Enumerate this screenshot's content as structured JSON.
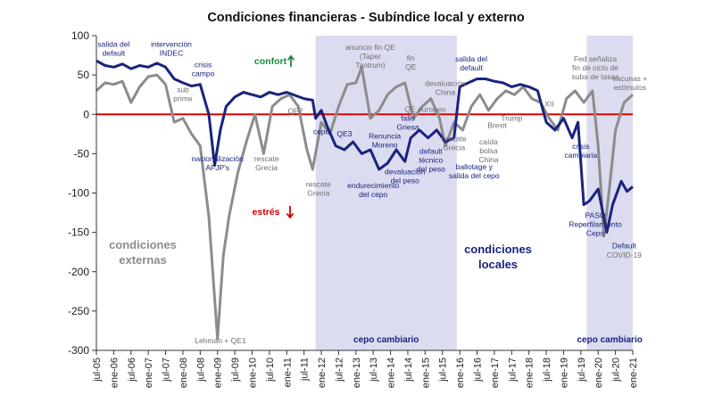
{
  "chart_data": {
    "type": "line",
    "title": "Condiciones financieras - Subíndice local y externo",
    "ylim": [
      -300,
      100
    ],
    "y_ticks": [
      100,
      50,
      0,
      -50,
      -100,
      -150,
      -200,
      -250,
      -300
    ],
    "x_start": "2005-07",
    "x_end": "2021-01",
    "x_ticks": [
      "jul-05",
      "ene-06",
      "jul-06",
      "ene-07",
      "jul-07",
      "ene-08",
      "jul-08",
      "ene-09",
      "jul-09",
      "ene-10",
      "jul-10",
      "ene-11",
      "jul-11",
      "ene-12",
      "jul-12",
      "ene-13",
      "jul-13",
      "ene-14",
      "jul-14",
      "ene-15",
      "jul-15",
      "ene-16",
      "jul-16",
      "ene-17",
      "jul-17",
      "ene-18",
      "jul-18",
      "ene-19",
      "jul-19",
      "ene-20",
      "jul-20",
      "ene-21"
    ],
    "reference_line": 0,
    "colors": {
      "local": "#1a237e",
      "externo": "#8c8c8c",
      "zero": "#e00000",
      "shade": "#dcdcf0"
    },
    "shaded_periods": [
      {
        "label": "cepo cambiario",
        "start": "2011-11",
        "end": "2015-12"
      },
      {
        "label": "cepo cambiario",
        "start": "2019-09",
        "end": "2021-01"
      }
    ],
    "series": [
      {
        "name": "condiciones locales",
        "color": "#1a237e",
        "points": [
          [
            "2005-07",
            68
          ],
          [
            "2005-10",
            62
          ],
          [
            "2006-01",
            60
          ],
          [
            "2006-04",
            64
          ],
          [
            "2006-07",
            58
          ],
          [
            "2006-10",
            62
          ],
          [
            "2007-01",
            60
          ],
          [
            "2007-04",
            65
          ],
          [
            "2007-07",
            60
          ],
          [
            "2007-10",
            45
          ],
          [
            "2008-01",
            40
          ],
          [
            "2008-04",
            36
          ],
          [
            "2008-07",
            38
          ],
          [
            "2008-10",
            0
          ],
          [
            "2008-12",
            -65
          ],
          [
            "2009-02",
            -20
          ],
          [
            "2009-04",
            10
          ],
          [
            "2009-07",
            22
          ],
          [
            "2009-10",
            28
          ],
          [
            "2010-01",
            25
          ],
          [
            "2010-04",
            22
          ],
          [
            "2010-07",
            28
          ],
          [
            "2010-10",
            25
          ],
          [
            "2011-01",
            28
          ],
          [
            "2011-04",
            24
          ],
          [
            "2011-07",
            20
          ],
          [
            "2011-10",
            18
          ],
          [
            "2011-11",
            -5
          ],
          [
            "2012-01",
            5
          ],
          [
            "2012-03",
            -15
          ],
          [
            "2012-06",
            -40
          ],
          [
            "2012-09",
            -45
          ],
          [
            "2012-12",
            -35
          ],
          [
            "2013-03",
            -50
          ],
          [
            "2013-06",
            -45
          ],
          [
            "2013-09",
            -70
          ],
          [
            "2013-12",
            -62
          ],
          [
            "2014-03",
            -45
          ],
          [
            "2014-06",
            -60
          ],
          [
            "2014-08",
            -30
          ],
          [
            "2014-11",
            -20
          ],
          [
            "2015-02",
            -30
          ],
          [
            "2015-05",
            -20
          ],
          [
            "2015-08",
            -35
          ],
          [
            "2015-11",
            -30
          ],
          [
            "2016-01",
            35
          ],
          [
            "2016-04",
            40
          ],
          [
            "2016-07",
            45
          ],
          [
            "2016-10",
            45
          ],
          [
            "2017-01",
            42
          ],
          [
            "2017-04",
            40
          ],
          [
            "2017-07",
            35
          ],
          [
            "2017-10",
            38
          ],
          [
            "2018-01",
            35
          ],
          [
            "2018-04",
            30
          ],
          [
            "2018-07",
            -10
          ],
          [
            "2018-10",
            -20
          ],
          [
            "2019-01",
            -5
          ],
          [
            "2019-04",
            -30
          ],
          [
            "2019-06",
            -10
          ],
          [
            "2019-08",
            -115
          ],
          [
            "2019-10",
            -110
          ],
          [
            "2020-01",
            -95
          ],
          [
            "2020-04",
            -150
          ],
          [
            "2020-06",
            -115
          ],
          [
            "2020-09",
            -85
          ],
          [
            "2020-11",
            -98
          ],
          [
            "2021-01",
            -92
          ]
        ]
      },
      {
        "name": "condiciones externas",
        "color": "#8c8c8c",
        "points": [
          [
            "2005-07",
            30
          ],
          [
            "2005-10",
            40
          ],
          [
            "2006-01",
            38
          ],
          [
            "2006-04",
            42
          ],
          [
            "2006-07",
            15
          ],
          [
            "2006-10",
            35
          ],
          [
            "2007-01",
            48
          ],
          [
            "2007-04",
            50
          ],
          [
            "2007-07",
            38
          ],
          [
            "2007-10",
            -10
          ],
          [
            "2008-01",
            -5
          ],
          [
            "2008-04",
            -25
          ],
          [
            "2008-07",
            -40
          ],
          [
            "2008-10",
            -130
          ],
          [
            "2009-01",
            -285
          ],
          [
            "2009-03",
            -180
          ],
          [
            "2009-05",
            -130
          ],
          [
            "2009-08",
            -75
          ],
          [
            "2009-11",
            -35
          ],
          [
            "2010-02",
            0
          ],
          [
            "2010-05",
            -50
          ],
          [
            "2010-08",
            10
          ],
          [
            "2010-11",
            20
          ],
          [
            "2011-02",
            25
          ],
          [
            "2011-05",
            10
          ],
          [
            "2011-08",
            -45
          ],
          [
            "2011-10",
            -70
          ],
          [
            "2012-01",
            -10
          ],
          [
            "2012-04",
            -25
          ],
          [
            "2012-07",
            10
          ],
          [
            "2012-10",
            38
          ],
          [
            "2013-01",
            40
          ],
          [
            "2013-03",
            60
          ],
          [
            "2013-06",
            -5
          ],
          [
            "2013-09",
            5
          ],
          [
            "2013-12",
            25
          ],
          [
            "2014-03",
            35
          ],
          [
            "2014-06",
            40
          ],
          [
            "2014-09",
            -5
          ],
          [
            "2014-12",
            10
          ],
          [
            "2015-03",
            20
          ],
          [
            "2015-06",
            -5
          ],
          [
            "2015-08",
            -40
          ],
          [
            "2015-11",
            -10
          ],
          [
            "2016-02",
            -20
          ],
          [
            "2016-05",
            10
          ],
          [
            "2016-08",
            25
          ],
          [
            "2016-11",
            5
          ],
          [
            "2017-02",
            20
          ],
          [
            "2017-05",
            30
          ],
          [
            "2017-08",
            25
          ],
          [
            "2017-11",
            35
          ],
          [
            "2018-02",
            20
          ],
          [
            "2018-05",
            15
          ],
          [
            "2018-08",
            -5
          ],
          [
            "2018-11",
            -20
          ],
          [
            "2019-02",
            20
          ],
          [
            "2019-05",
            30
          ],
          [
            "2019-08",
            15
          ],
          [
            "2019-11",
            30
          ],
          [
            "2020-01",
            -40
          ],
          [
            "2020-03",
            -155
          ],
          [
            "2020-05",
            -90
          ],
          [
            "2020-07",
            -20
          ],
          [
            "2020-10",
            15
          ],
          [
            "2021-01",
            25
          ]
        ]
      }
    ],
    "labels": {
      "series_externas": [
        "condiciones",
        "externas"
      ],
      "series_locales": [
        "condiciones",
        "locales"
      ],
      "confort": "confort",
      "estres": "estrés"
    },
    "annotations": [
      {
        "text": [
          "salida del",
          "default"
        ],
        "color": "local",
        "date": "2006-01",
        "value": 86
      },
      {
        "text": [
          "intervención",
          "INDEC"
        ],
        "color": "local",
        "date": "2007-09",
        "value": 86
      },
      {
        "text": [
          "crisis",
          "campo"
        ],
        "color": "local",
        "date": "2008-08",
        "value": 60
      },
      {
        "text": [
          "sub",
          "prime"
        ],
        "color": "externo",
        "date": "2008-01",
        "value": 28
      },
      {
        "text": [
          "nacionalización",
          "AFJP's"
        ],
        "color": "local",
        "date": "2009-01",
        "value": -60
      },
      {
        "text": [
          "rescate",
          "Grecia"
        ],
        "color": "externo",
        "date": "2010-06",
        "value": -60
      },
      {
        "text": [
          "QE2"
        ],
        "color": "externo",
        "date": "2011-04",
        "value": 1
      },
      {
        "text": [
          "cepo"
        ],
        "color": "local",
        "date": "2012-01",
        "value": -25
      },
      {
        "text": [
          "rescate",
          "Grecia"
        ],
        "color": "externo",
        "date": "2011-12",
        "value": -92
      },
      {
        "text": [
          "anuncio fin QE",
          "(Taper",
          "Tantrum)"
        ],
        "color": "externo",
        "date": "2013-06",
        "value": 82
      },
      {
        "text": [
          "QE3"
        ],
        "color": "local",
        "date": "2012-09",
        "value": -28
      },
      {
        "text": [
          "Renuncia",
          "Moreno"
        ],
        "color": "local",
        "date": "2013-11",
        "value": -31
      },
      {
        "text": [
          "endurecimiento",
          "del cepo"
        ],
        "color": "local",
        "date": "2013-07",
        "value": -94
      },
      {
        "text": [
          "fin",
          "QE"
        ],
        "color": "externo",
        "date": "2014-08",
        "value": 68
      },
      {
        "text": [
          "QE europeo"
        ],
        "color": "externo",
        "date": "2015-01",
        "value": 3
      },
      {
        "text": [
          "fallo",
          "Griesa"
        ],
        "color": "local",
        "date": "2014-07",
        "value": -8
      },
      {
        "text": [
          "devaluación",
          "del peso"
        ],
        "color": "local",
        "date": "2014-06",
        "value": -76
      },
      {
        "text": [
          "default",
          "técnico",
          "del peso"
        ],
        "color": "local",
        "date": "2015-03",
        "value": -50
      },
      {
        "text": [
          "devaluación",
          "China"
        ],
        "color": "externo",
        "date": "2015-08",
        "value": 36
      },
      {
        "text": [
          "rescate",
          "Grecia"
        ],
        "color": "externo",
        "date": "2015-11",
        "value": -34
      },
      {
        "text": [
          "ballotage y",
          "salida del cepo"
        ],
        "color": "local",
        "date": "2016-06",
        "value": -70
      },
      {
        "text": [
          "caída",
          "bolsa",
          "China"
        ],
        "color": "externo",
        "date": "2016-11",
        "value": -38
      },
      {
        "text": [
          "Brexit"
        ],
        "color": "externo",
        "date": "2017-02",
        "value": -17
      },
      {
        "text": [
          "salida del",
          "default"
        ],
        "color": "local",
        "date": "2016-05",
        "value": 67
      },
      {
        "text": [
          "Trump"
        ],
        "color": "externo",
        "date": "2017-07",
        "value": -8
      },
      {
        "text": [
          "XII"
        ],
        "color": "externo",
        "date": "2018-08",
        "value": 10
      },
      {
        "text": [
          "crisis",
          "cambiaria"
        ],
        "color": "local",
        "date": "2019-07",
        "value": -44
      },
      {
        "text": [
          "Fed señaliza",
          "fin de ciclo de",
          "suba de tasas"
        ],
        "color": "externo",
        "date": "2019-12",
        "value": 67
      },
      {
        "text": [
          "vacunas +",
          "estímulos"
        ],
        "color": "externo",
        "date": "2020-12",
        "value": 42
      },
      {
        "text": [
          "PASO",
          "Reperfilamiento",
          "Cepo"
        ],
        "color": "local",
        "date": "2019-12",
        "value": -132
      },
      {
        "text": [
          "Default"
        ],
        "color": "local",
        "date": "2020-10",
        "value": -170
      },
      {
        "text": [
          "COVID-19"
        ],
        "color": "externo",
        "date": "2020-10",
        "value": -182
      },
      {
        "text": [
          "Lehman + QE1"
        ],
        "color": "externo",
        "date": "2009-02",
        "value": -291
      }
    ]
  }
}
